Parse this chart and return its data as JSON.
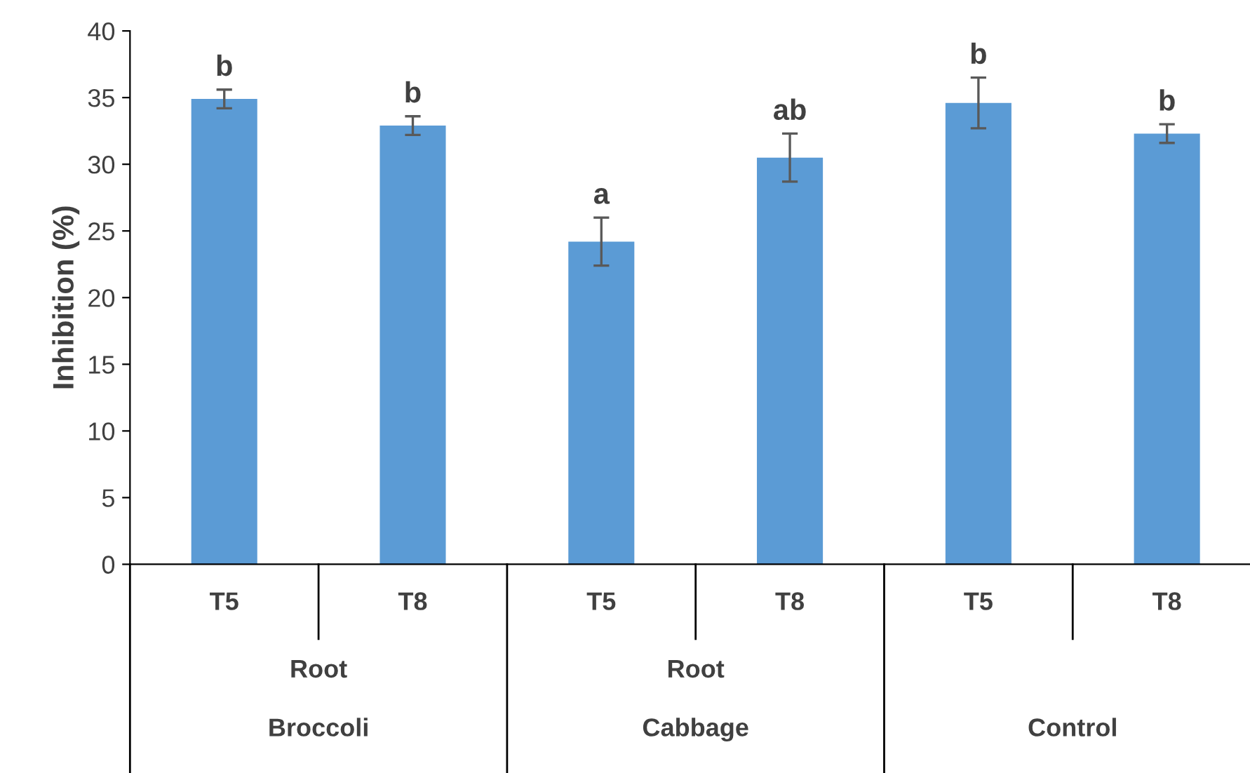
{
  "chart_data": {
    "type": "bar",
    "ylabel": "Inhibition (%)",
    "categories": [
      "T5",
      "T8",
      "T5",
      "T8",
      "T5",
      "T8"
    ],
    "values": [
      34.9,
      32.9,
      24.2,
      30.5,
      34.6,
      32.3
    ],
    "errors": [
      0.7,
      0.7,
      1.8,
      1.8,
      1.9,
      0.7
    ],
    "value_labels": [
      "b",
      "b",
      "a",
      "ab",
      "b",
      "b"
    ],
    "color": "#5b9bd5",
    "ylim": [
      0,
      40
    ],
    "yticks": [
      0,
      5,
      10,
      15,
      20,
      25,
      30,
      35,
      40
    ],
    "grid": false,
    "annotations": [
      "Root",
      "Root",
      "Broccoli",
      "Cabbage",
      "Control"
    ]
  }
}
